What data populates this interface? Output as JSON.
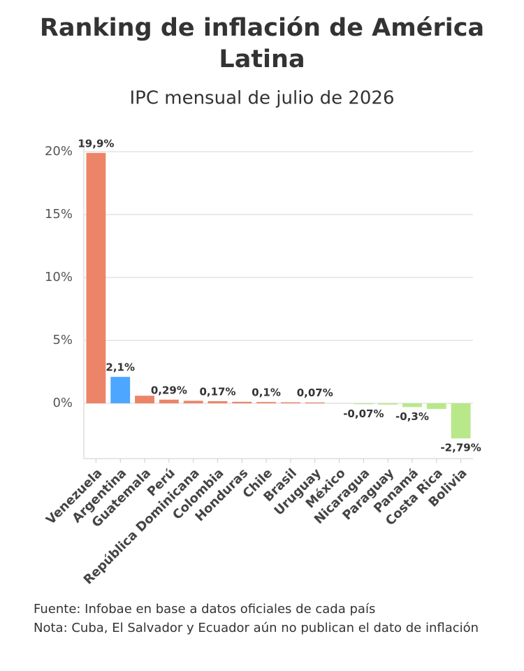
{
  "chart_data": {
    "type": "bar",
    "title": "Ranking de inflación de América Latina",
    "subtitle": "IPC mensual de julio de 2026",
    "categories": [
      "Venezuela",
      "Argentina",
      "Guatemala",
      "Perú",
      "República Dominicana",
      "Colombia",
      "Honduras",
      "Chile",
      "Brasil",
      "Uruguay",
      "México",
      "Nicaragua",
      "Paraguay",
      "Panamá",
      "Costa Rica",
      "Bolivia"
    ],
    "values": [
      19.9,
      2.1,
      0.6,
      0.29,
      0.2,
      0.17,
      0.12,
      0.1,
      0.08,
      0.07,
      0,
      -0.07,
      -0.1,
      -0.3,
      -0.45,
      -2.79
    ],
    "value_labels": [
      "19,9%",
      "2,1%",
      null,
      "0,29%",
      null,
      "0,17%",
      null,
      "0,1%",
      null,
      "0,07%",
      null,
      "-0,07%",
      null,
      "-0,3%",
      null,
      "-2,79%"
    ],
    "colors": [
      "#ec8468",
      "#4da6ff",
      "#ec8468",
      "#ec8468",
      "#ec8468",
      "#ec8468",
      "#ec8468",
      "#ec8468",
      "#ec8468",
      "#ec8468",
      "#ec8468",
      "#b9e88a",
      "#b9e88a",
      "#b9e88a",
      "#b9e88a",
      "#b9e88a"
    ],
    "ylim": [
      -4.4,
      20.9
    ],
    "yticks": [
      {
        "value": 0,
        "label": "0%"
      },
      {
        "value": 5,
        "label": "5%"
      },
      {
        "value": 10,
        "label": "10%"
      },
      {
        "value": 15,
        "label": "15%"
      },
      {
        "value": 20,
        "label": "20%"
      }
    ],
    "grid": true,
    "source": "Fuente: Infobae en base a datos oficiales de cada país",
    "note": "Nota: Cuba, El Salvador y Ecuador aún no publican el dato de inflación"
  }
}
